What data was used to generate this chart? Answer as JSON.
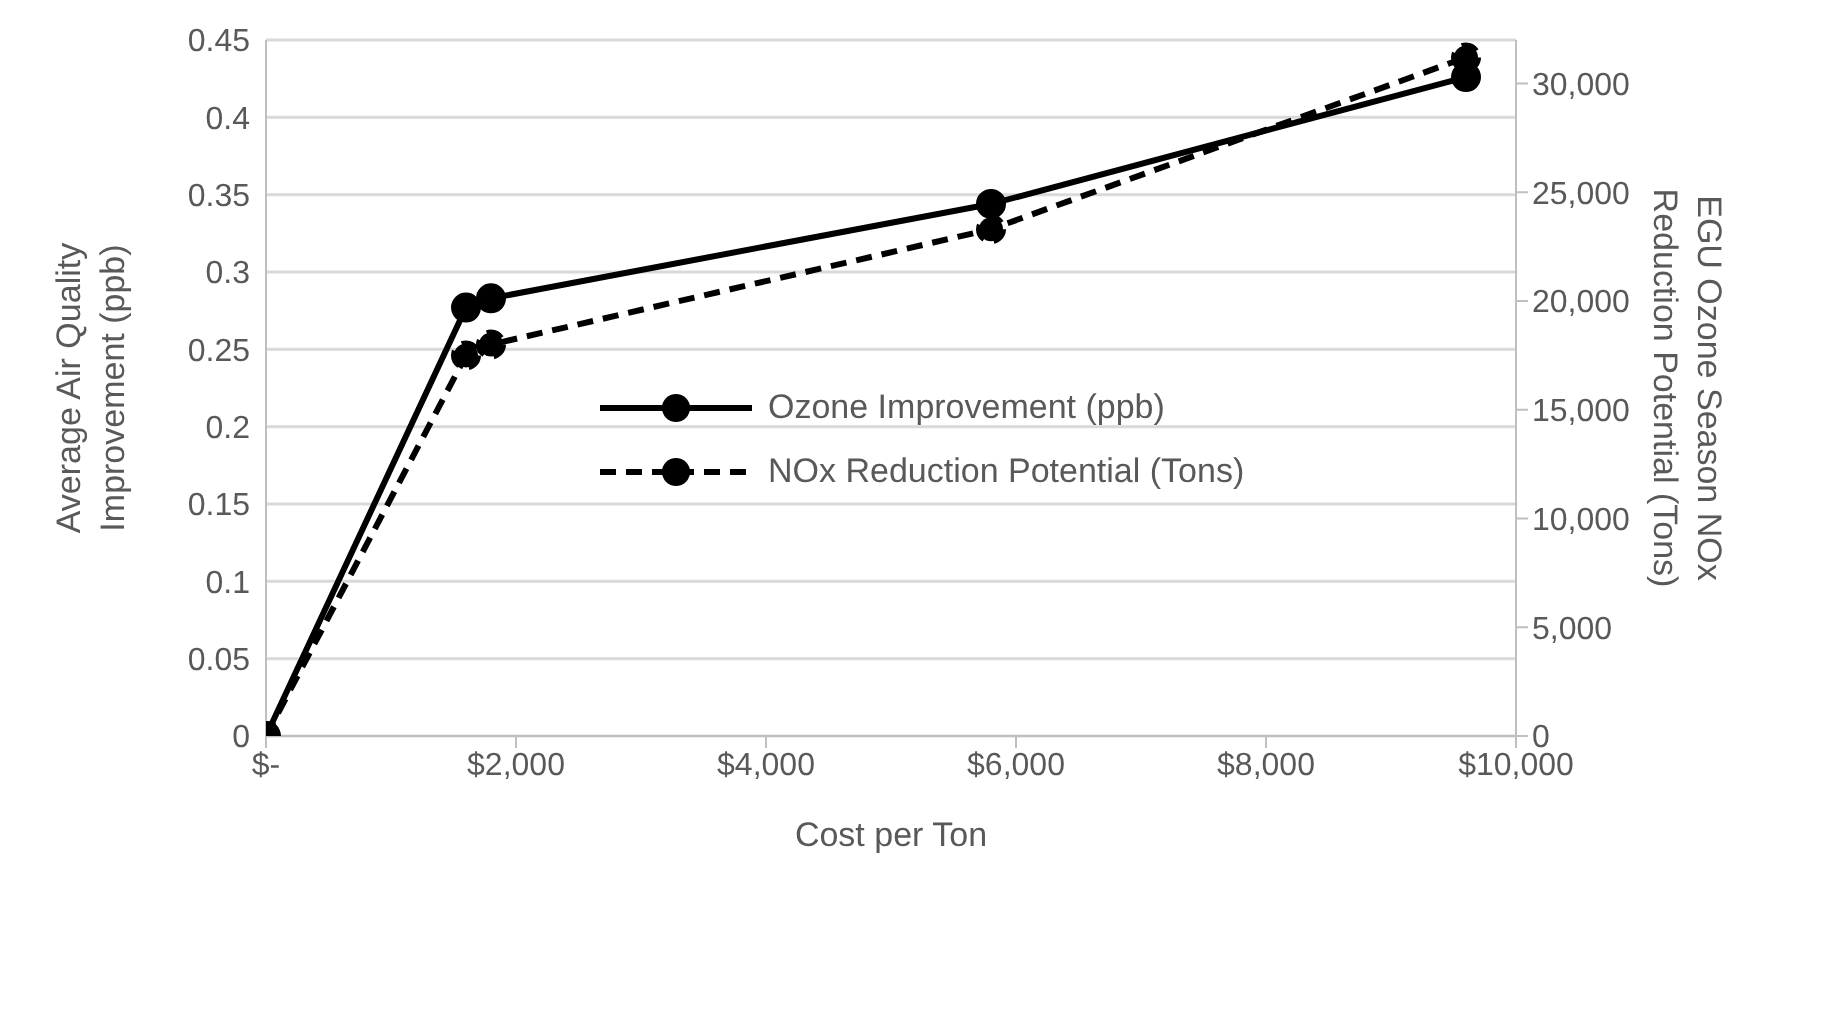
{
  "chart_data": {
    "type": "line",
    "xlabel": "Cost per Ton",
    "ylabel": "Average Air Quality Improvement (ppb)",
    "y2label": "EGU Ozone Season NOx Reduction Potential (Tons)",
    "x": [
      0,
      1600,
      1800,
      5800,
      9600
    ],
    "series": [
      {
        "name": "Ozone Improvement (ppb)",
        "color": "#000000",
        "values": [
          0,
          0.277,
          0.283,
          0.344,
          0.426
        ],
        "line_style": "solid"
      },
      {
        "name": "NOx Reduction Potential (Tons)",
        "color": "#000000",
        "values": [
          0,
          17500,
          18000,
          23300,
          31200
        ],
        "axis": "y2",
        "line_style": "dashed"
      }
    ],
    "xlim": [
      0,
      10000
    ],
    "xticks": [
      {
        "value": 0,
        "label": "$-"
      },
      {
        "value": 2000,
        "label": "$2,000"
      },
      {
        "value": 4000,
        "label": "$4,000"
      },
      {
        "value": 6000,
        "label": "$6,000"
      },
      {
        "value": 8000,
        "label": "$8,000"
      },
      {
        "value": 10000,
        "label": "$10,000"
      }
    ],
    "ylim": [
      0,
      0.45
    ],
    "yticks": [
      0,
      0.05,
      0.1,
      0.15,
      0.2,
      0.25,
      0.3,
      0.35,
      0.4,
      0.45
    ],
    "y2lim": [
      0,
      32000
    ],
    "y2ticks": [
      {
        "value": 0,
        "label": "0"
      },
      {
        "value": 5000,
        "label": "5,000"
      },
      {
        "value": 10000,
        "label": "10,000"
      },
      {
        "value": 15000,
        "label": "15,000"
      },
      {
        "value": 20000,
        "label": "20,000"
      },
      {
        "value": 25000,
        "label": "25,000"
      },
      {
        "value": 30000,
        "label": "30,000"
      }
    ],
    "grid": "y",
    "legend": "center",
    "marker": "circle"
  }
}
